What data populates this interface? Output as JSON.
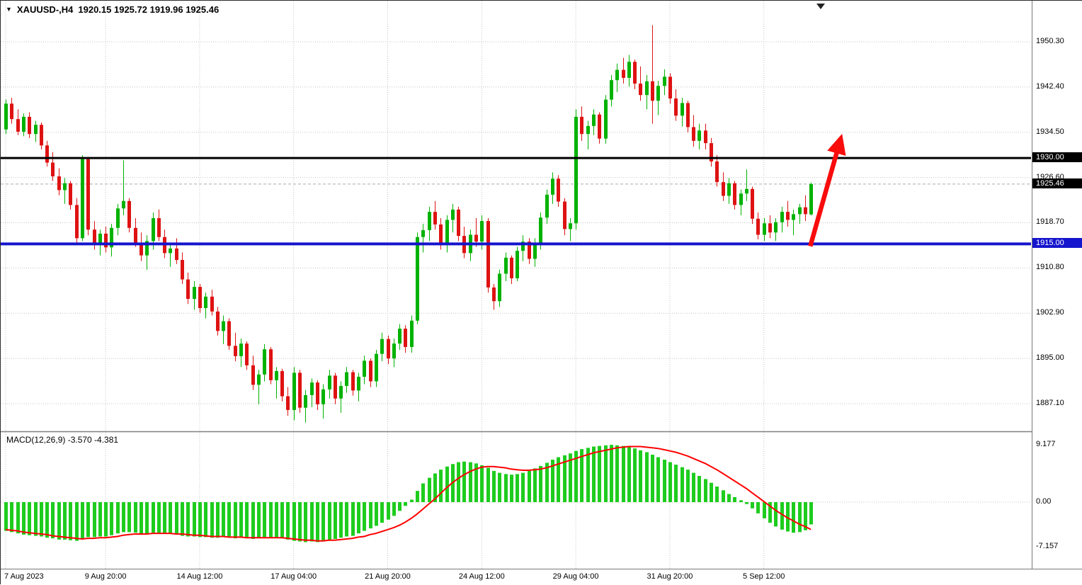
{
  "header": {
    "collapse_icon": "▼",
    "symbol_timeframe": "XAUUSD-,H4",
    "ohlc_text": "1920.15 1925.72 1919.96 1925.46",
    "open": "1920.15",
    "high": "1925.72",
    "low": "1919.96",
    "close": "1925.46"
  },
  "indicator_label": "MACD(12,26,9) -3.570 -4.381",
  "colors": {
    "bull": "#00B200",
    "bear": "#DE1212",
    "macd_bar": "#1ECC1E",
    "signal": "#FF0000",
    "grid": "#C4C4C4",
    "current_price_line": "#AAAAAA",
    "arrow": "#F80C0C",
    "badge_fg": "#FFFFFF"
  },
  "chart_data": [
    {
      "type": "candlestick",
      "title": "XAUUSD- H4",
      "ylim": [
        1883,
        1957
      ],
      "grid": true,
      "price_ticks": [
        {
          "value": 1950.3,
          "label": "1950.30"
        },
        {
          "value": 1942.4,
          "label": "1942.40"
        },
        {
          "value": 1934.5,
          "label": "1934.50"
        },
        {
          "value": 1926.6,
          "label": "1926.60"
        },
        {
          "value": 1918.7,
          "label": "1918.70"
        },
        {
          "value": 1910.8,
          "label": "1910.80"
        },
        {
          "value": 1902.9,
          "label": "1902.90"
        },
        {
          "value": 1895.0,
          "label": "1895.00"
        },
        {
          "value": 1887.1,
          "label": "1887.10"
        }
      ],
      "x_ticks": [
        {
          "bar": 0,
          "label": "7 Aug 2023"
        },
        {
          "bar": 17,
          "label": "9 Aug 20:00"
        },
        {
          "bar": 33,
          "label": "14 Aug 12:00"
        },
        {
          "bar": 49,
          "label": "17 Aug 04:00"
        },
        {
          "bar": 65,
          "label": "21 Aug 20:00"
        },
        {
          "bar": 81,
          "label": "24 Aug 12:00"
        },
        {
          "bar": 97,
          "label": "29 Aug 04:00"
        },
        {
          "bar": 113,
          "label": "31 Aug 20:00"
        },
        {
          "bar": 129,
          "label": "5 Sep 12:00"
        }
      ],
      "hlines": [
        {
          "price": 1930.0,
          "label": "1930.00",
          "line_color": "#000000",
          "badge_bg": "#000000",
          "width": 3
        },
        {
          "price": 1915.0,
          "label": "1915.00",
          "line_color": "#1515CD",
          "badge_bg": "#1515CD",
          "width": 4
        }
      ],
      "current_price": {
        "value": 1925.46,
        "label": "1925.46",
        "badge_bg": "#000000"
      },
      "arrow_annotation": {
        "from_bar": 136.9,
        "from_price": 1914.6,
        "to_bar": 141.5,
        "to_price": 1931.3
      },
      "candles_ohlc": [
        [
          1935.0,
          1940.2,
          1934.2,
          1939.5
        ],
        [
          1939.5,
          1940.5,
          1936.0,
          1936.8
        ],
        [
          1936.8,
          1938.5,
          1934.0,
          1934.6
        ],
        [
          1934.6,
          1937.8,
          1933.8,
          1937.2
        ],
        [
          1937.2,
          1938.0,
          1933.5,
          1934.2
        ],
        [
          1934.2,
          1936.5,
          1932.8,
          1935.8
        ],
        [
          1935.8,
          1936.2,
          1931.5,
          1932.2
        ],
        [
          1932.2,
          1933.0,
          1928.5,
          1929.2
        ],
        [
          1929.2,
          1931.0,
          1926.0,
          1926.8
        ],
        [
          1926.8,
          1928.2,
          1923.5,
          1924.4
        ],
        [
          1924.4,
          1926.5,
          1922.0,
          1925.6
        ],
        [
          1925.6,
          1926.0,
          1921.0,
          1921.8
        ],
        [
          1921.8,
          1923.0,
          1915.2,
          1916.0
        ],
        [
          1916.0,
          1930.5,
          1915.5,
          1929.8
        ],
        [
          1929.8,
          1930.2,
          1916.5,
          1917.5
        ],
        [
          1917.5,
          1919.0,
          1914.0,
          1915.0
        ],
        [
          1915.0,
          1917.5,
          1913.0,
          1916.8
        ],
        [
          1916.8,
          1918.0,
          1913.5,
          1914.4
        ],
        [
          1914.4,
          1918.5,
          1912.8,
          1917.8
        ],
        [
          1917.8,
          1922.0,
          1916.5,
          1921.2
        ],
        [
          1921.2,
          1929.6,
          1920.0,
          1922.5
        ],
        [
          1922.5,
          1923.0,
          1917.0,
          1917.8
        ],
        [
          1917.8,
          1919.5,
          1914.5,
          1915.2
        ],
        [
          1915.2,
          1917.0,
          1912.0,
          1913.0
        ],
        [
          1913.0,
          1916.5,
          1910.5,
          1915.5
        ],
        [
          1915.5,
          1920.5,
          1914.0,
          1919.5
        ],
        [
          1919.5,
          1921.0,
          1915.5,
          1916.2
        ],
        [
          1916.2,
          1917.5,
          1912.5,
          1913.4
        ],
        [
          1913.4,
          1915.0,
          1911.0,
          1914.2
        ],
        [
          1914.2,
          1916.0,
          1911.5,
          1912.2
        ],
        [
          1912.2,
          1913.5,
          1908.0,
          1908.8
        ],
        [
          1908.8,
          1910.0,
          1904.5,
          1905.4
        ],
        [
          1905.4,
          1908.5,
          1903.5,
          1907.5
        ],
        [
          1907.5,
          1908.0,
          1903.0,
          1903.8
        ],
        [
          1903.8,
          1906.5,
          1902.0,
          1905.8
        ],
        [
          1905.8,
          1907.0,
          1902.5,
          1903.2
        ],
        [
          1903.2,
          1904.0,
          1899.0,
          1899.8
        ],
        [
          1899.8,
          1902.5,
          1897.5,
          1901.5
        ],
        [
          1901.5,
          1902.0,
          1896.5,
          1897.2
        ],
        [
          1897.2,
          1899.5,
          1894.5,
          1895.4
        ],
        [
          1895.4,
          1898.5,
          1893.5,
          1897.6
        ],
        [
          1897.6,
          1898.0,
          1893.0,
          1893.8
        ],
        [
          1893.8,
          1895.5,
          1889.5,
          1890.4
        ],
        [
          1890.4,
          1893.0,
          1887.0,
          1892.2
        ],
        [
          1892.2,
          1897.5,
          1891.0,
          1896.6
        ],
        [
          1896.6,
          1897.0,
          1890.5,
          1891.2
        ],
        [
          1891.2,
          1893.5,
          1888.0,
          1892.8
        ],
        [
          1892.8,
          1893.2,
          1887.5,
          1888.4
        ],
        [
          1888.4,
          1890.0,
          1885.0,
          1886.0
        ],
        [
          1886.0,
          1893.5,
          1884.2,
          1892.5
        ],
        [
          1892.5,
          1893.0,
          1885.5,
          1886.4
        ],
        [
          1886.4,
          1889.5,
          1883.8,
          1888.6
        ],
        [
          1888.6,
          1891.5,
          1886.5,
          1890.8
        ],
        [
          1890.8,
          1891.2,
          1886.0,
          1887.0
        ],
        [
          1887.0,
          1890.5,
          1884.5,
          1889.6
        ],
        [
          1889.6,
          1893.0,
          1888.0,
          1892.0
        ],
        [
          1892.0,
          1892.5,
          1887.0,
          1888.0
        ],
        [
          1888.0,
          1891.0,
          1885.5,
          1890.2
        ],
        [
          1890.2,
          1893.5,
          1889.0,
          1892.6
        ],
        [
          1892.6,
          1893.0,
          1888.5,
          1889.4
        ],
        [
          1889.4,
          1892.5,
          1887.5,
          1891.8
        ],
        [
          1891.8,
          1895.5,
          1890.5,
          1894.6
        ],
        [
          1894.6,
          1895.0,
          1890.0,
          1891.0
        ],
        [
          1891.0,
          1896.5,
          1890.0,
          1895.8
        ],
        [
          1895.8,
          1899.5,
          1894.5,
          1898.4
        ],
        [
          1898.4,
          1899.0,
          1894.0,
          1895.0
        ],
        [
          1895.0,
          1898.5,
          1893.5,
          1897.6
        ],
        [
          1897.6,
          1901.0,
          1896.5,
          1900.2
        ],
        [
          1900.2,
          1900.8,
          1896.0,
          1897.0
        ],
        [
          1897.0,
          1902.5,
          1896.0,
          1901.6
        ],
        [
          1901.6,
          1917.0,
          1901.0,
          1916.2
        ],
        [
          1916.2,
          1918.5,
          1913.5,
          1917.4
        ],
        [
          1917.4,
          1921.5,
          1915.5,
          1920.6
        ],
        [
          1920.6,
          1922.5,
          1917.5,
          1918.4
        ],
        [
          1918.4,
          1919.5,
          1914.0,
          1915.0
        ],
        [
          1915.0,
          1920.0,
          1913.5,
          1919.2
        ],
        [
          1919.2,
          1922.0,
          1917.0,
          1921.0
        ],
        [
          1921.0,
          1921.5,
          1915.5,
          1916.4
        ],
        [
          1916.4,
          1918.0,
          1912.5,
          1913.4
        ],
        [
          1913.4,
          1917.5,
          1912.0,
          1916.6
        ],
        [
          1916.6,
          1919.5,
          1914.5,
          1915.4
        ],
        [
          1915.4,
          1920.0,
          1914.0,
          1919.0
        ],
        [
          1919.0,
          1919.5,
          1906.5,
          1907.4
        ],
        [
          1907.4,
          1908.0,
          1903.5,
          1905.0
        ],
        [
          1905.0,
          1910.5,
          1904.0,
          1909.8
        ],
        [
          1909.8,
          1913.5,
          1908.5,
          1912.6
        ],
        [
          1912.6,
          1913.0,
          1908.0,
          1909.0
        ],
        [
          1909.0,
          1914.5,
          1908.5,
          1913.8
        ],
        [
          1913.8,
          1916.5,
          1912.0,
          1915.4
        ],
        [
          1915.4,
          1916.0,
          1911.5,
          1912.4
        ],
        [
          1912.4,
          1916.0,
          1911.0,
          1915.2
        ],
        [
          1915.2,
          1920.5,
          1914.0,
          1919.6
        ],
        [
          1919.6,
          1924.5,
          1918.5,
          1923.6
        ],
        [
          1923.6,
          1927.5,
          1922.0,
          1926.4
        ],
        [
          1926.4,
          1927.0,
          1921.5,
          1922.4
        ],
        [
          1922.4,
          1923.0,
          1916.5,
          1917.6
        ],
        [
          1917.6,
          1919.5,
          1915.5,
          1918.6
        ],
        [
          1918.6,
          1938.5,
          1917.5,
          1937.2
        ],
        [
          1937.2,
          1939.0,
          1933.0,
          1934.2
        ],
        [
          1934.2,
          1936.5,
          1931.5,
          1935.6
        ],
        [
          1935.6,
          1938.5,
          1934.0,
          1937.6
        ],
        [
          1937.6,
          1938.0,
          1932.5,
          1933.4
        ],
        [
          1933.4,
          1941.0,
          1932.5,
          1940.2
        ],
        [
          1940.2,
          1944.5,
          1939.0,
          1943.6
        ],
        [
          1943.6,
          1946.5,
          1941.5,
          1945.4
        ],
        [
          1945.4,
          1947.5,
          1943.0,
          1944.0
        ],
        [
          1944.0,
          1948.0,
          1942.5,
          1946.8
        ],
        [
          1946.8,
          1947.2,
          1942.0,
          1943.0
        ],
        [
          1943.0,
          1946.0,
          1940.0,
          1941.0
        ],
        [
          1941.0,
          1944.5,
          1938.5,
          1943.4
        ],
        [
          1943.4,
          1953.2,
          1936.0,
          1940.0
        ],
        [
          1940.0,
          1943.5,
          1937.5,
          1942.6
        ],
        [
          1942.6,
          1945.5,
          1941.0,
          1944.2
        ],
        [
          1944.2,
          1944.8,
          1939.5,
          1940.4
        ],
        [
          1940.4,
          1942.0,
          1936.5,
          1937.4
        ],
        [
          1937.4,
          1940.5,
          1935.5,
          1939.6
        ],
        [
          1939.6,
          1940.0,
          1934.5,
          1935.4
        ],
        [
          1935.4,
          1937.5,
          1932.0,
          1933.0
        ],
        [
          1933.0,
          1936.0,
          1931.5,
          1934.8
        ],
        [
          1934.8,
          1936.0,
          1931.5,
          1932.6
        ],
        [
          1932.6,
          1933.5,
          1928.5,
          1929.4
        ],
        [
          1929.4,
          1930.5,
          1925.0,
          1925.8
        ],
        [
          1925.8,
          1927.5,
          1922.5,
          1923.4
        ],
        [
          1923.4,
          1926.5,
          1922.0,
          1925.6
        ],
        [
          1925.6,
          1926.0,
          1921.0,
          1921.8
        ],
        [
          1921.8,
          1924.5,
          1920.0,
          1923.8
        ],
        [
          1923.8,
          1928.0,
          1922.5,
          1924.6
        ],
        [
          1924.6,
          1925.0,
          1918.5,
          1919.4
        ],
        [
          1919.4,
          1920.5,
          1915.8,
          1916.6
        ],
        [
          1916.6,
          1919.5,
          1915.5,
          1918.6
        ],
        [
          1918.6,
          1920.0,
          1916.0,
          1917.0
        ],
        [
          1917.0,
          1919.5,
          1915.5,
          1918.8
        ],
        [
          1918.8,
          1921.5,
          1917.0,
          1920.6
        ],
        [
          1920.6,
          1922.5,
          1918.0,
          1919.2
        ],
        [
          1919.2,
          1921.0,
          1916.5,
          1920.2
        ],
        [
          1920.2,
          1922.0,
          1918.5,
          1921.4
        ],
        [
          1921.4,
          1923.5,
          1919.0,
          1920.2
        ],
        [
          1920.15,
          1925.72,
          1919.96,
          1925.46
        ]
      ]
    },
    {
      "type": "macd",
      "label": "MACD(12,26,9) -3.570 -4.381",
      "params": "12,26,9",
      "main_value_text": "-3.570",
      "signal_value_text": "-4.381",
      "y_ticks": [
        {
          "value": 9.177,
          "label": "9.177"
        },
        {
          "value": 0,
          "label": "0.00"
        },
        {
          "value": -7.157,
          "label": "-7.157"
        }
      ],
      "histogram": [
        -4.6,
        -4.8,
        -5.0,
        -5.2,
        -5.3,
        -5.4,
        -5.5,
        -5.7,
        -5.8,
        -6.0,
        -6.0,
        -6.1,
        -6.2,
        -5.9,
        -5.6,
        -5.6,
        -5.5,
        -5.5,
        -5.3,
        -5.0,
        -4.8,
        -4.8,
        -4.9,
        -5.0,
        -5.0,
        -4.9,
        -4.9,
        -5.0,
        -5.1,
        -5.2,
        -5.4,
        -5.5,
        -5.5,
        -5.6,
        -5.6,
        -5.7,
        -5.7,
        -5.6,
        -5.7,
        -5.8,
        -5.7,
        -5.8,
        -5.9,
        -5.8,
        -5.6,
        -5.7,
        -5.7,
        -5.8,
        -6.0,
        -6.2,
        -6.3,
        -6.4,
        -6.3,
        -6.4,
        -6.2,
        -6.0,
        -5.9,
        -5.7,
        -5.5,
        -5.4,
        -5.0,
        -4.6,
        -4.2,
        -3.8,
        -3.3,
        -2.8,
        -2.2,
        -1.4,
        -0.6,
        0.4,
        1.8,
        3.0,
        3.9,
        4.6,
        5.2,
        5.7,
        6.1,
        6.4,
        6.5,
        6.4,
        6.2,
        5.9,
        5.5,
        5.0,
        4.7,
        4.5,
        4.4,
        4.5,
        4.7,
        5.0,
        5.4,
        5.8,
        6.3,
        6.8,
        7.2,
        7.5,
        7.8,
        8.2,
        8.5,
        8.7,
        8.9,
        9.0,
        9.1,
        9.177,
        9.1,
        9.0,
        8.8,
        8.6,
        8.3,
        8.0,
        7.6,
        7.2,
        6.8,
        6.4,
        6.0,
        5.6,
        5.2,
        4.7,
        4.2,
        3.7,
        3.1,
        2.5,
        1.9,
        1.3,
        0.8,
        0.3,
        -0.3,
        -1.0,
        -1.8,
        -2.6,
        -3.3,
        -3.9,
        -4.4,
        -4.7,
        -4.9,
        -4.8,
        -4.5,
        -3.57
      ],
      "signal": [
        -4.4,
        -4.5,
        -4.6,
        -4.8,
        -4.9,
        -5.0,
        -5.1,
        -5.2,
        -5.4,
        -5.5,
        -5.6,
        -5.7,
        -5.8,
        -5.9,
        -5.8,
        -5.8,
        -5.7,
        -5.7,
        -5.6,
        -5.5,
        -5.3,
        -5.2,
        -5.1,
        -5.1,
        -5.1,
        -5.0,
        -5.0,
        -5.0,
        -5.0,
        -5.1,
        -5.1,
        -5.2,
        -5.3,
        -5.3,
        -5.4,
        -5.5,
        -5.5,
        -5.5,
        -5.6,
        -5.6,
        -5.6,
        -5.7,
        -5.7,
        -5.7,
        -5.7,
        -5.7,
        -5.7,
        -5.7,
        -5.8,
        -5.9,
        -6.0,
        -6.1,
        -6.1,
        -6.2,
        -6.2,
        -6.1,
        -6.1,
        -6.0,
        -5.9,
        -5.8,
        -5.6,
        -5.5,
        -5.2,
        -5.0,
        -4.7,
        -4.4,
        -4.1,
        -3.7,
        -3.2,
        -2.6,
        -1.9,
        -1.1,
        -0.3,
        0.5,
        1.4,
        2.3,
        3.1,
        3.8,
        4.4,
        4.9,
        5.3,
        5.6,
        5.7,
        5.7,
        5.6,
        5.5,
        5.3,
        5.2,
        5.1,
        5.1,
        5.2,
        5.3,
        5.5,
        5.8,
        6.1,
        6.4,
        6.7,
        7.0,
        7.3,
        7.6,
        7.9,
        8.1,
        8.3,
        8.5,
        8.7,
        8.8,
        8.9,
        8.9,
        8.9,
        8.8,
        8.7,
        8.6,
        8.4,
        8.2,
        8.0,
        7.7,
        7.4,
        7.0,
        6.6,
        6.2,
        5.7,
        5.2,
        4.6,
        4.0,
        3.4,
        2.8,
        2.2,
        1.5,
        0.8,
        0.1,
        -0.6,
        -1.3,
        -1.9,
        -2.5,
        -3.0,
        -3.5,
        -3.9,
        -4.381
      ]
    }
  ]
}
